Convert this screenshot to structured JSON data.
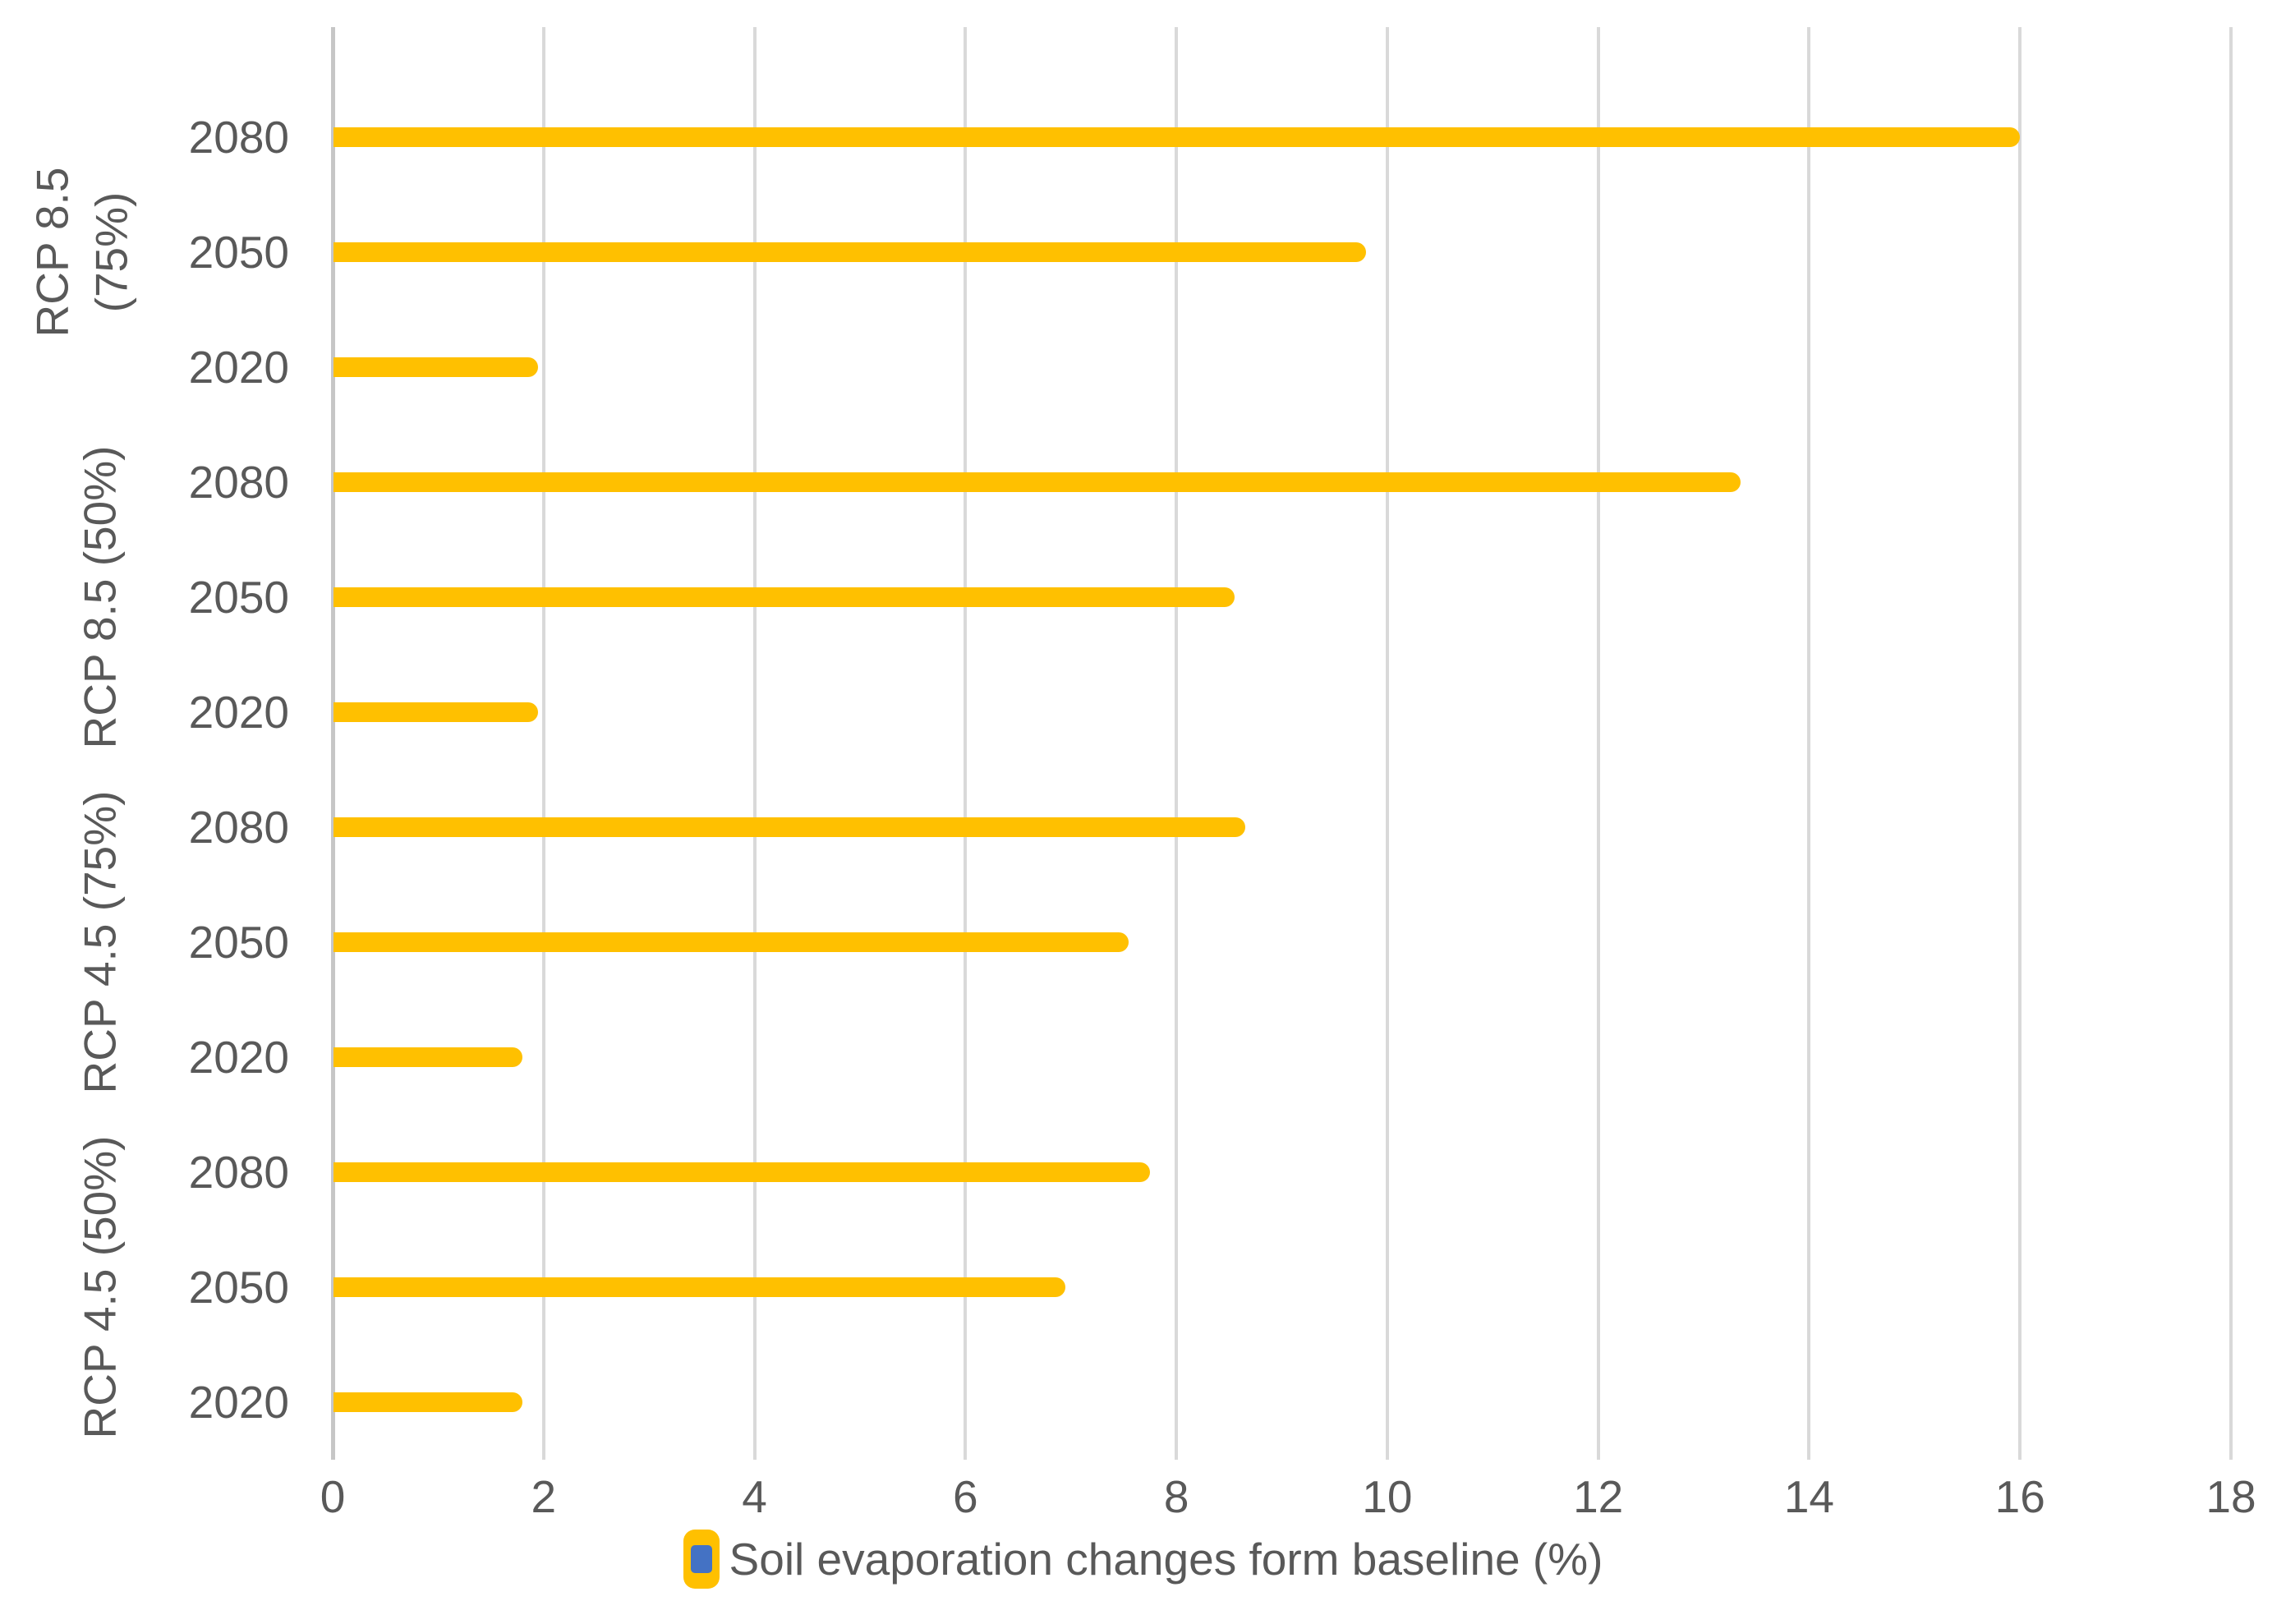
{
  "chart_data": {
    "type": "bar",
    "orientation": "horizontal",
    "title": "",
    "xlabel": "",
    "ylabel": "",
    "xlim": [
      0,
      18
    ],
    "x_ticks": [
      0,
      2,
      4,
      6,
      8,
      10,
      12,
      14,
      16,
      18
    ],
    "grid": true,
    "bar_color": "#FFC000",
    "text_color": "#595959",
    "gridline_color": "#D9D9D9",
    "axis_line_color": "#C6C6C6",
    "legend": {
      "label": "Soil evaporation changes form baseline (%)",
      "position": "bottom",
      "marker_fill": "#FFC000",
      "marker_inner_fill": "#4472C4"
    },
    "groups": [
      {
        "label": "RCP 8.5 (75%)",
        "label_lines": [
          "RCP 8.5",
          "(75%)"
        ],
        "rows": [
          {
            "year": "2080",
            "value": 16.0
          },
          {
            "year": "2050",
            "value": 9.8
          },
          {
            "year": "2020",
            "value": 1.95
          }
        ]
      },
      {
        "label": "RCP 8.5 (50%)",
        "label_lines": [
          "RCP 8.5 (50%)"
        ],
        "rows": [
          {
            "year": "2080",
            "value": 13.35
          },
          {
            "year": "2050",
            "value": 8.55
          },
          {
            "year": "2020",
            "value": 1.95
          }
        ]
      },
      {
        "label": "RCP 4.5 (75%)",
        "label_lines": [
          "RCP 4.5 (75%)"
        ],
        "rows": [
          {
            "year": "2080",
            "value": 8.65
          },
          {
            "year": "2050",
            "value": 7.55
          },
          {
            "year": "2020",
            "value": 1.8
          }
        ]
      },
      {
        "label": "RCP 4.5 (50%)",
        "label_lines": [
          "RCP 4.5 (50%)"
        ],
        "rows": [
          {
            "year": "2080",
            "value": 7.75
          },
          {
            "year": "2050",
            "value": 6.95
          },
          {
            "year": "2020",
            "value": 1.8
          }
        ]
      }
    ]
  }
}
